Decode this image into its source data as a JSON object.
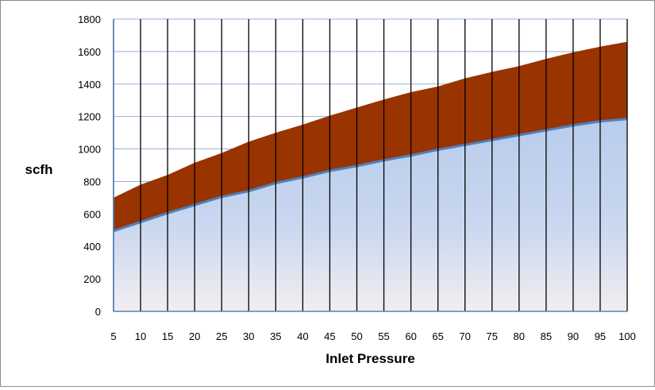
{
  "chart_data": {
    "type": "area",
    "xlabel": "Inlet Pressure",
    "ylabel": "scfh",
    "xlim": [
      5,
      100
    ],
    "ylim": [
      0,
      1800
    ],
    "grid": true,
    "x": [
      5,
      10,
      15,
      20,
      25,
      30,
      35,
      40,
      45,
      50,
      55,
      60,
      65,
      70,
      75,
      80,
      85,
      90,
      95,
      100
    ],
    "x_tick_labels": [
      "5",
      "10",
      "15",
      "20",
      "25",
      "30",
      "35",
      "40",
      "45",
      "50",
      "55",
      "60",
      "65",
      "70",
      "75",
      "80",
      "85",
      "90",
      "95",
      "100"
    ],
    "y_tick_labels": [
      "0",
      "200",
      "400",
      "600",
      "800",
      "1000",
      "1200",
      "1400",
      "1600",
      "1800"
    ],
    "series": [
      {
        "color": "#4f81bd",
        "fill": "#bdd0ee",
        "values": [
          495,
          550,
          605,
          655,
          705,
          740,
          790,
          825,
          865,
          895,
          930,
          960,
          995,
          1025,
          1055,
          1085,
          1115,
          1145,
          1170,
          1185
        ]
      },
      {
        "color": "#993300",
        "values": [
          700,
          780,
          840,
          915,
          975,
          1045,
          1100,
          1150,
          1205,
          1255,
          1305,
          1350,
          1385,
          1435,
          1475,
          1510,
          1555,
          1595,
          1630,
          1660
        ]
      }
    ]
  }
}
